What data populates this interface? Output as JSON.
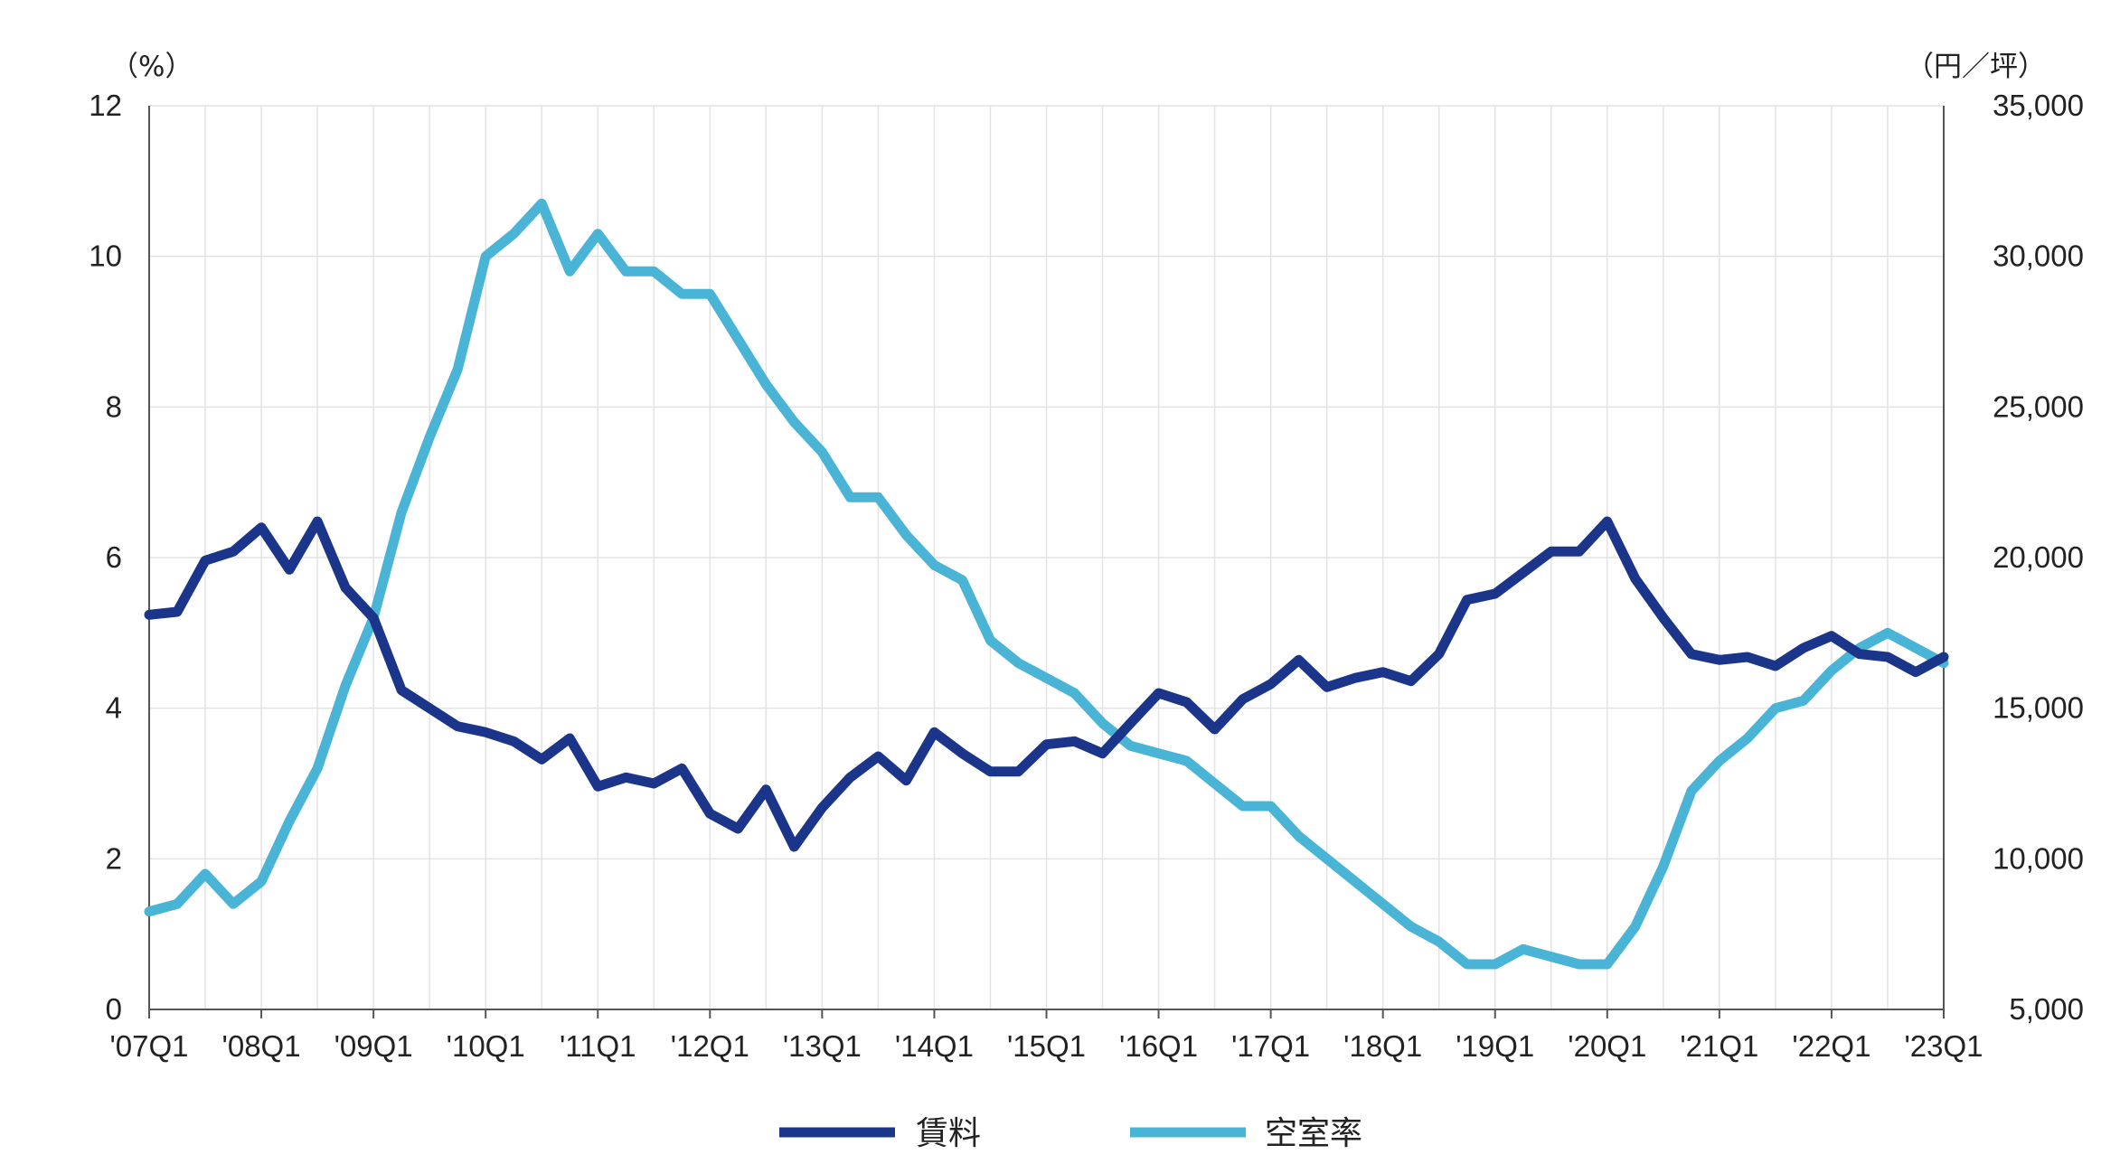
{
  "colors": {
    "rent": "#1a3589",
    "vacancy": "#4ab4d6",
    "grid": "#e3e3e3",
    "axis": "#555555"
  },
  "units": {
    "left": "（%）",
    "right": "（円／坪）"
  },
  "legend": [
    {
      "label": "賃料",
      "series": "rent"
    },
    {
      "label": "空室率",
      "series": "vacancy"
    }
  ],
  "chart_data": {
    "type": "line",
    "x_tick_labels": [
      "'07Q1",
      "'08Q1",
      "'09Q1",
      "'10Q1",
      "'11Q1",
      "'12Q1",
      "'13Q1",
      "'14Q1",
      "'15Q1",
      "'16Q1",
      "'17Q1",
      "'18Q1",
      "'19Q1",
      "'20Q1",
      "'21Q1",
      "'22Q1",
      "'23Q1"
    ],
    "left_axis": {
      "ylim": [
        0,
        12
      ],
      "ticks": [
        "0",
        "2",
        "4",
        "6",
        "8",
        "10",
        "12"
      ]
    },
    "right_axis": {
      "ylim": [
        5000,
        35000
      ],
      "ticks": [
        "5,000",
        "10,000",
        "15,000",
        "20,000",
        "25,000",
        "30,000",
        "35,000"
      ]
    },
    "grid": true,
    "legend_position": "bottom",
    "series": [
      {
        "name": "賃料",
        "axis": "right",
        "color_key": "rent",
        "values": [
          18100,
          18200,
          19900,
          20200,
          21000,
          19600,
          21200,
          19000,
          18000,
          15600,
          15000,
          14400,
          14200,
          13900,
          13300,
          14000,
          12400,
          12700,
          12500,
          13000,
          11500,
          11000,
          12300,
          10400,
          11700,
          12700,
          13400,
          12600,
          14200,
          13500,
          12900,
          12900,
          13800,
          13900,
          13500,
          14500,
          15500,
          15200,
          14300,
          15300,
          15800,
          16600,
          15700,
          16000,
          16200,
          15900,
          16800,
          18600,
          18800,
          19500,
          20200,
          20200,
          21200,
          19300,
          18000,
          16800,
          16600,
          16700,
          16400,
          17000,
          17400,
          16800,
          16700,
          16200,
          16700
        ]
      },
      {
        "name": "空室率",
        "axis": "left",
        "color_key": "vacancy",
        "values": [
          1.3,
          1.4,
          1.8,
          1.4,
          1.7,
          2.5,
          3.2,
          4.3,
          5.2,
          6.6,
          7.6,
          8.5,
          10.0,
          10.3,
          10.7,
          9.8,
          10.3,
          9.8,
          9.8,
          9.5,
          9.5,
          8.9,
          8.3,
          7.8,
          7.4,
          6.8,
          6.8,
          6.3,
          5.9,
          5.7,
          4.9,
          4.6,
          4.4,
          4.2,
          3.8,
          3.5,
          3.4,
          3.3,
          3.0,
          2.7,
          2.7,
          2.3,
          2.0,
          1.7,
          1.4,
          1.1,
          0.9,
          0.6,
          0.6,
          0.8,
          0.7,
          0.6,
          0.6,
          1.1,
          1.9,
          2.9,
          3.3,
          3.6,
          4.0,
          4.1,
          4.5,
          4.8,
          5.0,
          4.8,
          4.6
        ]
      }
    ]
  }
}
